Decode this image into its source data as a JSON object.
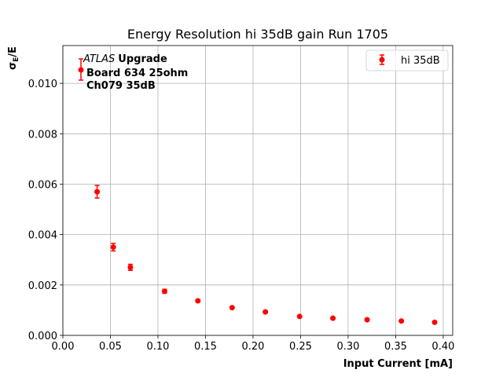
{
  "chart_data": {
    "type": "scatter",
    "title": "Energy Resolution hi 35dB gain Run 1705",
    "xlabel": "Input Current [mA]",
    "ylabel_main": "σ",
    "ylabel_sub": "E",
    "ylabel_tail": "/E",
    "xlim": [
      0.0,
      0.41
    ],
    "ylim": [
      0.0,
      0.0115
    ],
    "xticks": [
      0.0,
      0.05,
      0.1,
      0.15,
      0.2,
      0.25,
      0.3,
      0.35,
      0.4
    ],
    "xtick_labels": [
      "0.00",
      "0.05",
      "0.10",
      "0.15",
      "0.20",
      "0.25",
      "0.30",
      "0.35",
      "0.40"
    ],
    "yticks": [
      0.0,
      0.002,
      0.004,
      0.006,
      0.008,
      0.01
    ],
    "ytick_labels": [
      "0.000",
      "0.002",
      "0.004",
      "0.006",
      "0.008",
      "0.010"
    ],
    "grid": true,
    "legend_position": "top-right",
    "color": "#ff0000",
    "series": [
      {
        "name": "hi 35dB",
        "x": [
          0.036,
          0.053,
          0.071,
          0.107,
          0.142,
          0.178,
          0.213,
          0.249,
          0.284,
          0.32,
          0.356,
          0.391
        ],
        "y": [
          0.0057,
          0.0035,
          0.0027,
          0.00175,
          0.00137,
          0.0011,
          0.00093,
          0.00075,
          0.00068,
          0.00062,
          0.00057,
          0.00052
        ],
        "yerr": [
          0.00025,
          0.00015,
          0.00012,
          8e-05,
          5e-05,
          4e-05,
          3e-05,
          3e-05,
          3e-05,
          2e-05,
          2e-05,
          2e-05
        ]
      }
    ],
    "annotation": {
      "atlas": "ATLAS",
      "upgrade": "Upgrade",
      "line2": "Board 634 25ohm",
      "line3": "Ch079 35dB"
    }
  }
}
